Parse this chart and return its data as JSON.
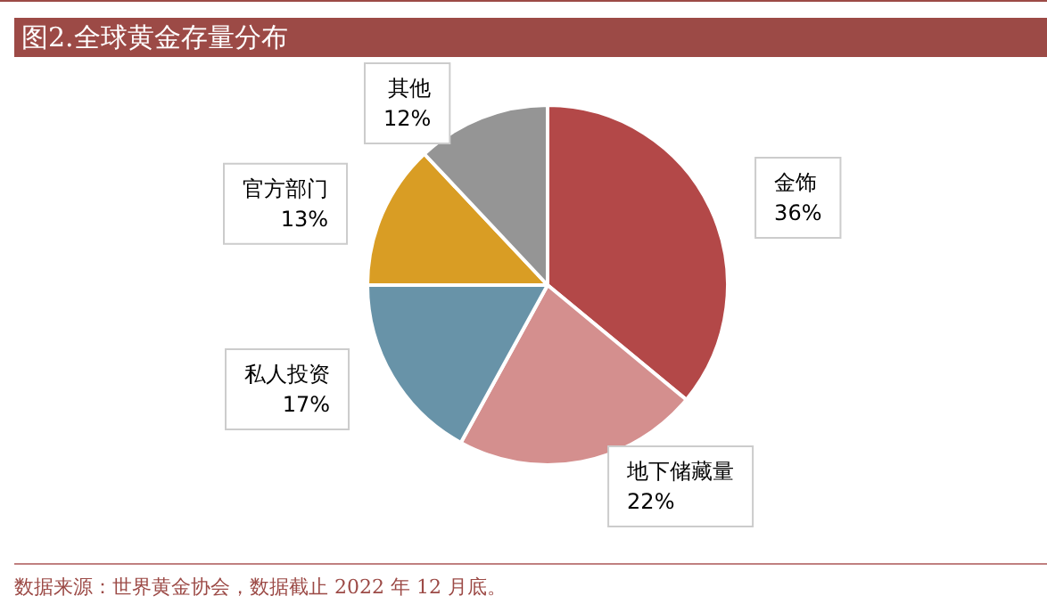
{
  "chart_data": {
    "type": "pie",
    "title": "图2.全球黄金存量分布",
    "categories": [
      "金饰",
      "地下储藏量",
      "私人投资",
      "官方部门",
      "其他"
    ],
    "values": [
      36,
      22,
      17,
      13,
      12
    ],
    "value_labels": [
      "36%",
      "22%",
      "17%",
      "13%",
      "12%"
    ],
    "colors": [
      "#b34848",
      "#d48f8e",
      "#6893a8",
      "#d99d24",
      "#959595"
    ],
    "legend": false,
    "annotations": [
      "数据来源：世界黄金协会，数据截止 2022 年 12 月底。"
    ]
  }
}
